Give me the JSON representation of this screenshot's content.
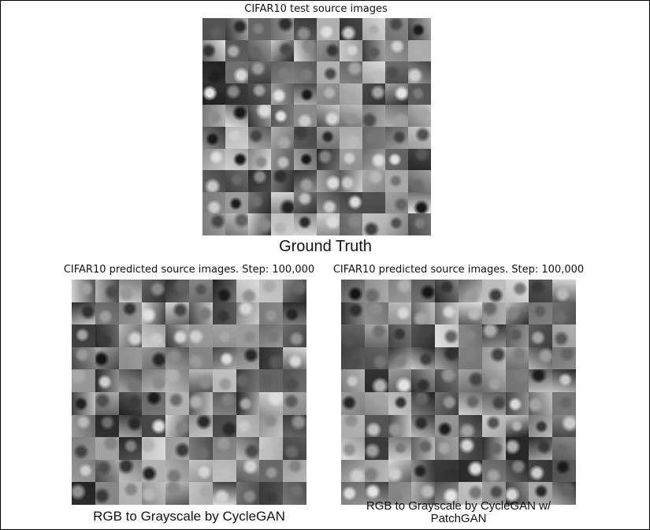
{
  "panels": {
    "ground_truth": {
      "title": "CIFAR10 test source images",
      "caption": "Ground Truth"
    },
    "cyclegan": {
      "title": "CIFAR10 predicted source images. Step: 100,000",
      "caption": "RGB to Grayscale by CycleGAN"
    },
    "cyclegan_patchgan": {
      "title": "CIFAR10 predicted source images. Step: 100,000",
      "caption": "RGB to Grayscale by CycleGAN w/ PatchGAN"
    }
  },
  "grid": {
    "rows": 10,
    "cols": 10,
    "tone": "grayscale"
  }
}
